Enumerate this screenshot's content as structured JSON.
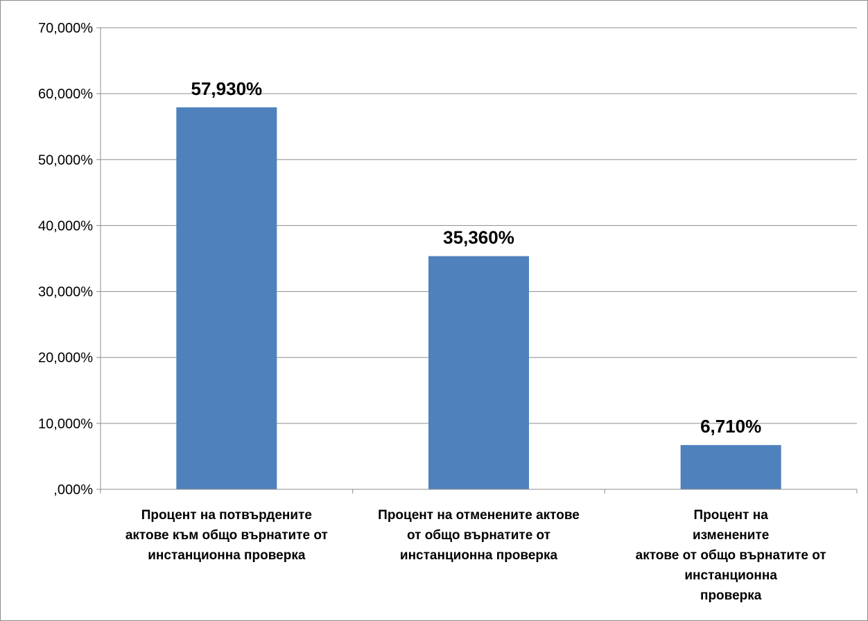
{
  "chart_data": {
    "type": "bar",
    "categories": [
      "Процент на потвърдените актове към общо върнатите от инстанционна проверка",
      "Процент на отменените актове от общо върнатите от инстанционна проверка",
      "Процент на изменените актове от общо върнатите от инстанционна проверка"
    ],
    "category_lines": [
      [
        "Процент на потвърдените",
        "актове към общо върнатите от",
        "инстанционна проверка"
      ],
      [
        "Процент на отменените актове",
        "от общо върнатите от",
        "инстанционна проверка"
      ],
      [
        "Процент на",
        "изменените",
        "актове от общо върнатите от",
        "инстанционна",
        "проверка"
      ]
    ],
    "values": [
      57.93,
      35.36,
      6.71
    ],
    "data_labels": [
      "57,930%",
      "35,360%",
      "6,710%"
    ],
    "ylim": [
      0,
      70
    ],
    "yticks": [
      0,
      10,
      20,
      30,
      40,
      50,
      60,
      70
    ],
    "ytick_labels": [
      ",000%",
      "10,000%",
      "20,000%",
      "30,000%",
      "40,000%",
      "50,000%",
      "60,000%",
      "70,000%"
    ],
    "title": "",
    "xlabel": "",
    "ylabel": "",
    "grid": true,
    "legend": "none",
    "colors": {
      "bar": "#4f81bd",
      "grid": "#8c8c8c",
      "axis": "#8c8c8c"
    }
  }
}
